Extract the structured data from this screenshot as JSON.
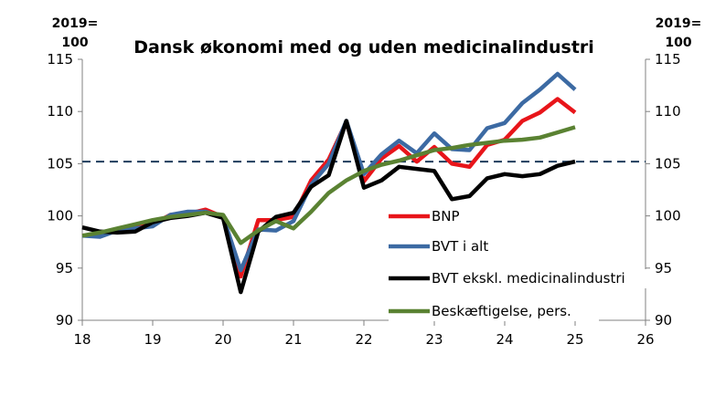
{
  "chart_data": {
    "type": "line",
    "title": "Dansk økonomi med og uden medicinalindustri",
    "ylabel_left": "2019=\n100",
    "ylabel_right": "2019=\n100",
    "xlabel": "",
    "x_tick_labels": [
      "18",
      "19",
      "20",
      "21",
      "22",
      "23",
      "24",
      "25",
      "26"
    ],
    "y_tick_labels": [
      "90",
      "95",
      "100",
      "105",
      "110",
      "115"
    ],
    "xlim": [
      2018,
      2026
    ],
    "ylim": [
      90,
      115
    ],
    "grid": false,
    "reference_line": {
      "value": 105.2,
      "style": "dashed",
      "color": "#1f3d5c"
    },
    "legend_position": "center-right",
    "series": [
      {
        "name": "BNP",
        "color": "#e8151a",
        "x": [
          2018.0,
          2018.25,
          2018.5,
          2018.75,
          2019.0,
          2019.25,
          2019.5,
          2019.75,
          2020.0,
          2020.25,
          2020.5,
          2020.75,
          2021.0,
          2021.25,
          2021.5,
          2021.75,
          2022.0,
          2022.25,
          2022.5,
          2022.75,
          2023.0,
          2023.25,
          2023.5,
          2023.75,
          2024.0,
          2024.25,
          2024.5,
          2024.75,
          2025.0
        ],
        "values": [
          98.1,
          98.2,
          98.7,
          98.9,
          99.2,
          100.1,
          100.2,
          100.6,
          99.9,
          94.2,
          99.6,
          99.6,
          99.9,
          103.4,
          105.4,
          109.0,
          103.3,
          105.5,
          106.7,
          105.2,
          106.6,
          105.0,
          104.7,
          106.8,
          107.3,
          109.1,
          109.9,
          111.2,
          109.9
        ]
      },
      {
        "name": "BVT i alt",
        "color": "#3c6aa3",
        "x": [
          2018.0,
          2018.25,
          2018.5,
          2018.75,
          2019.0,
          2019.25,
          2019.5,
          2019.75,
          2020.0,
          2020.25,
          2020.5,
          2020.75,
          2021.0,
          2021.25,
          2021.5,
          2021.75,
          2022.0,
          2022.25,
          2022.5,
          2022.75,
          2023.0,
          2023.25,
          2023.5,
          2023.75,
          2024.0,
          2024.25,
          2024.5,
          2024.75,
          2025.0
        ],
        "values": [
          98.1,
          98.0,
          98.6,
          98.8,
          99.0,
          100.1,
          100.4,
          100.4,
          99.9,
          94.8,
          98.7,
          98.6,
          99.5,
          103.0,
          105.0,
          109.1,
          104.0,
          105.9,
          107.2,
          106.0,
          107.9,
          106.4,
          106.3,
          108.4,
          108.9,
          110.8,
          112.1,
          113.6,
          112.1
        ]
      },
      {
        "name": "BVT ekskl. medicinalindustri",
        "color": "#000000",
        "x": [
          2018.0,
          2018.25,
          2018.5,
          2018.75,
          2019.0,
          2019.25,
          2019.5,
          2019.75,
          2020.0,
          2020.25,
          2020.5,
          2020.75,
          2021.0,
          2021.25,
          2021.5,
          2021.75,
          2022.0,
          2022.25,
          2022.5,
          2022.75,
          2023.0,
          2023.25,
          2023.5,
          2023.75,
          2024.0,
          2024.25,
          2024.5,
          2024.75,
          2025.0
        ],
        "values": [
          98.9,
          98.5,
          98.4,
          98.5,
          99.4,
          99.8,
          100.0,
          100.3,
          99.8,
          92.7,
          98.5,
          99.9,
          100.3,
          102.8,
          103.9,
          109.1,
          102.7,
          103.4,
          104.7,
          104.5,
          104.3,
          101.6,
          101.9,
          103.6,
          104.0,
          103.8,
          104.0,
          104.8,
          105.2
        ]
      },
      {
        "name": "Beskæftigelse, pers.",
        "color": "#5a8232",
        "x": [
          2018.0,
          2018.25,
          2018.5,
          2018.75,
          2019.0,
          2019.25,
          2019.5,
          2019.75,
          2020.0,
          2020.25,
          2020.5,
          2020.75,
          2021.0,
          2021.25,
          2021.5,
          2021.75,
          2022.0,
          2022.25,
          2022.5,
          2022.75,
          2023.0,
          2023.25,
          2023.5,
          2023.75,
          2024.0,
          2024.25,
          2024.5,
          2024.75,
          2025.0
        ],
        "values": [
          98.1,
          98.4,
          98.8,
          99.2,
          99.6,
          99.9,
          100.1,
          100.3,
          100.1,
          97.4,
          98.6,
          99.5,
          98.8,
          100.4,
          102.2,
          103.4,
          104.3,
          104.9,
          105.3,
          105.8,
          106.3,
          106.5,
          106.8,
          107.0,
          107.2,
          107.3,
          107.5,
          108.0,
          108.5
        ]
      }
    ]
  }
}
